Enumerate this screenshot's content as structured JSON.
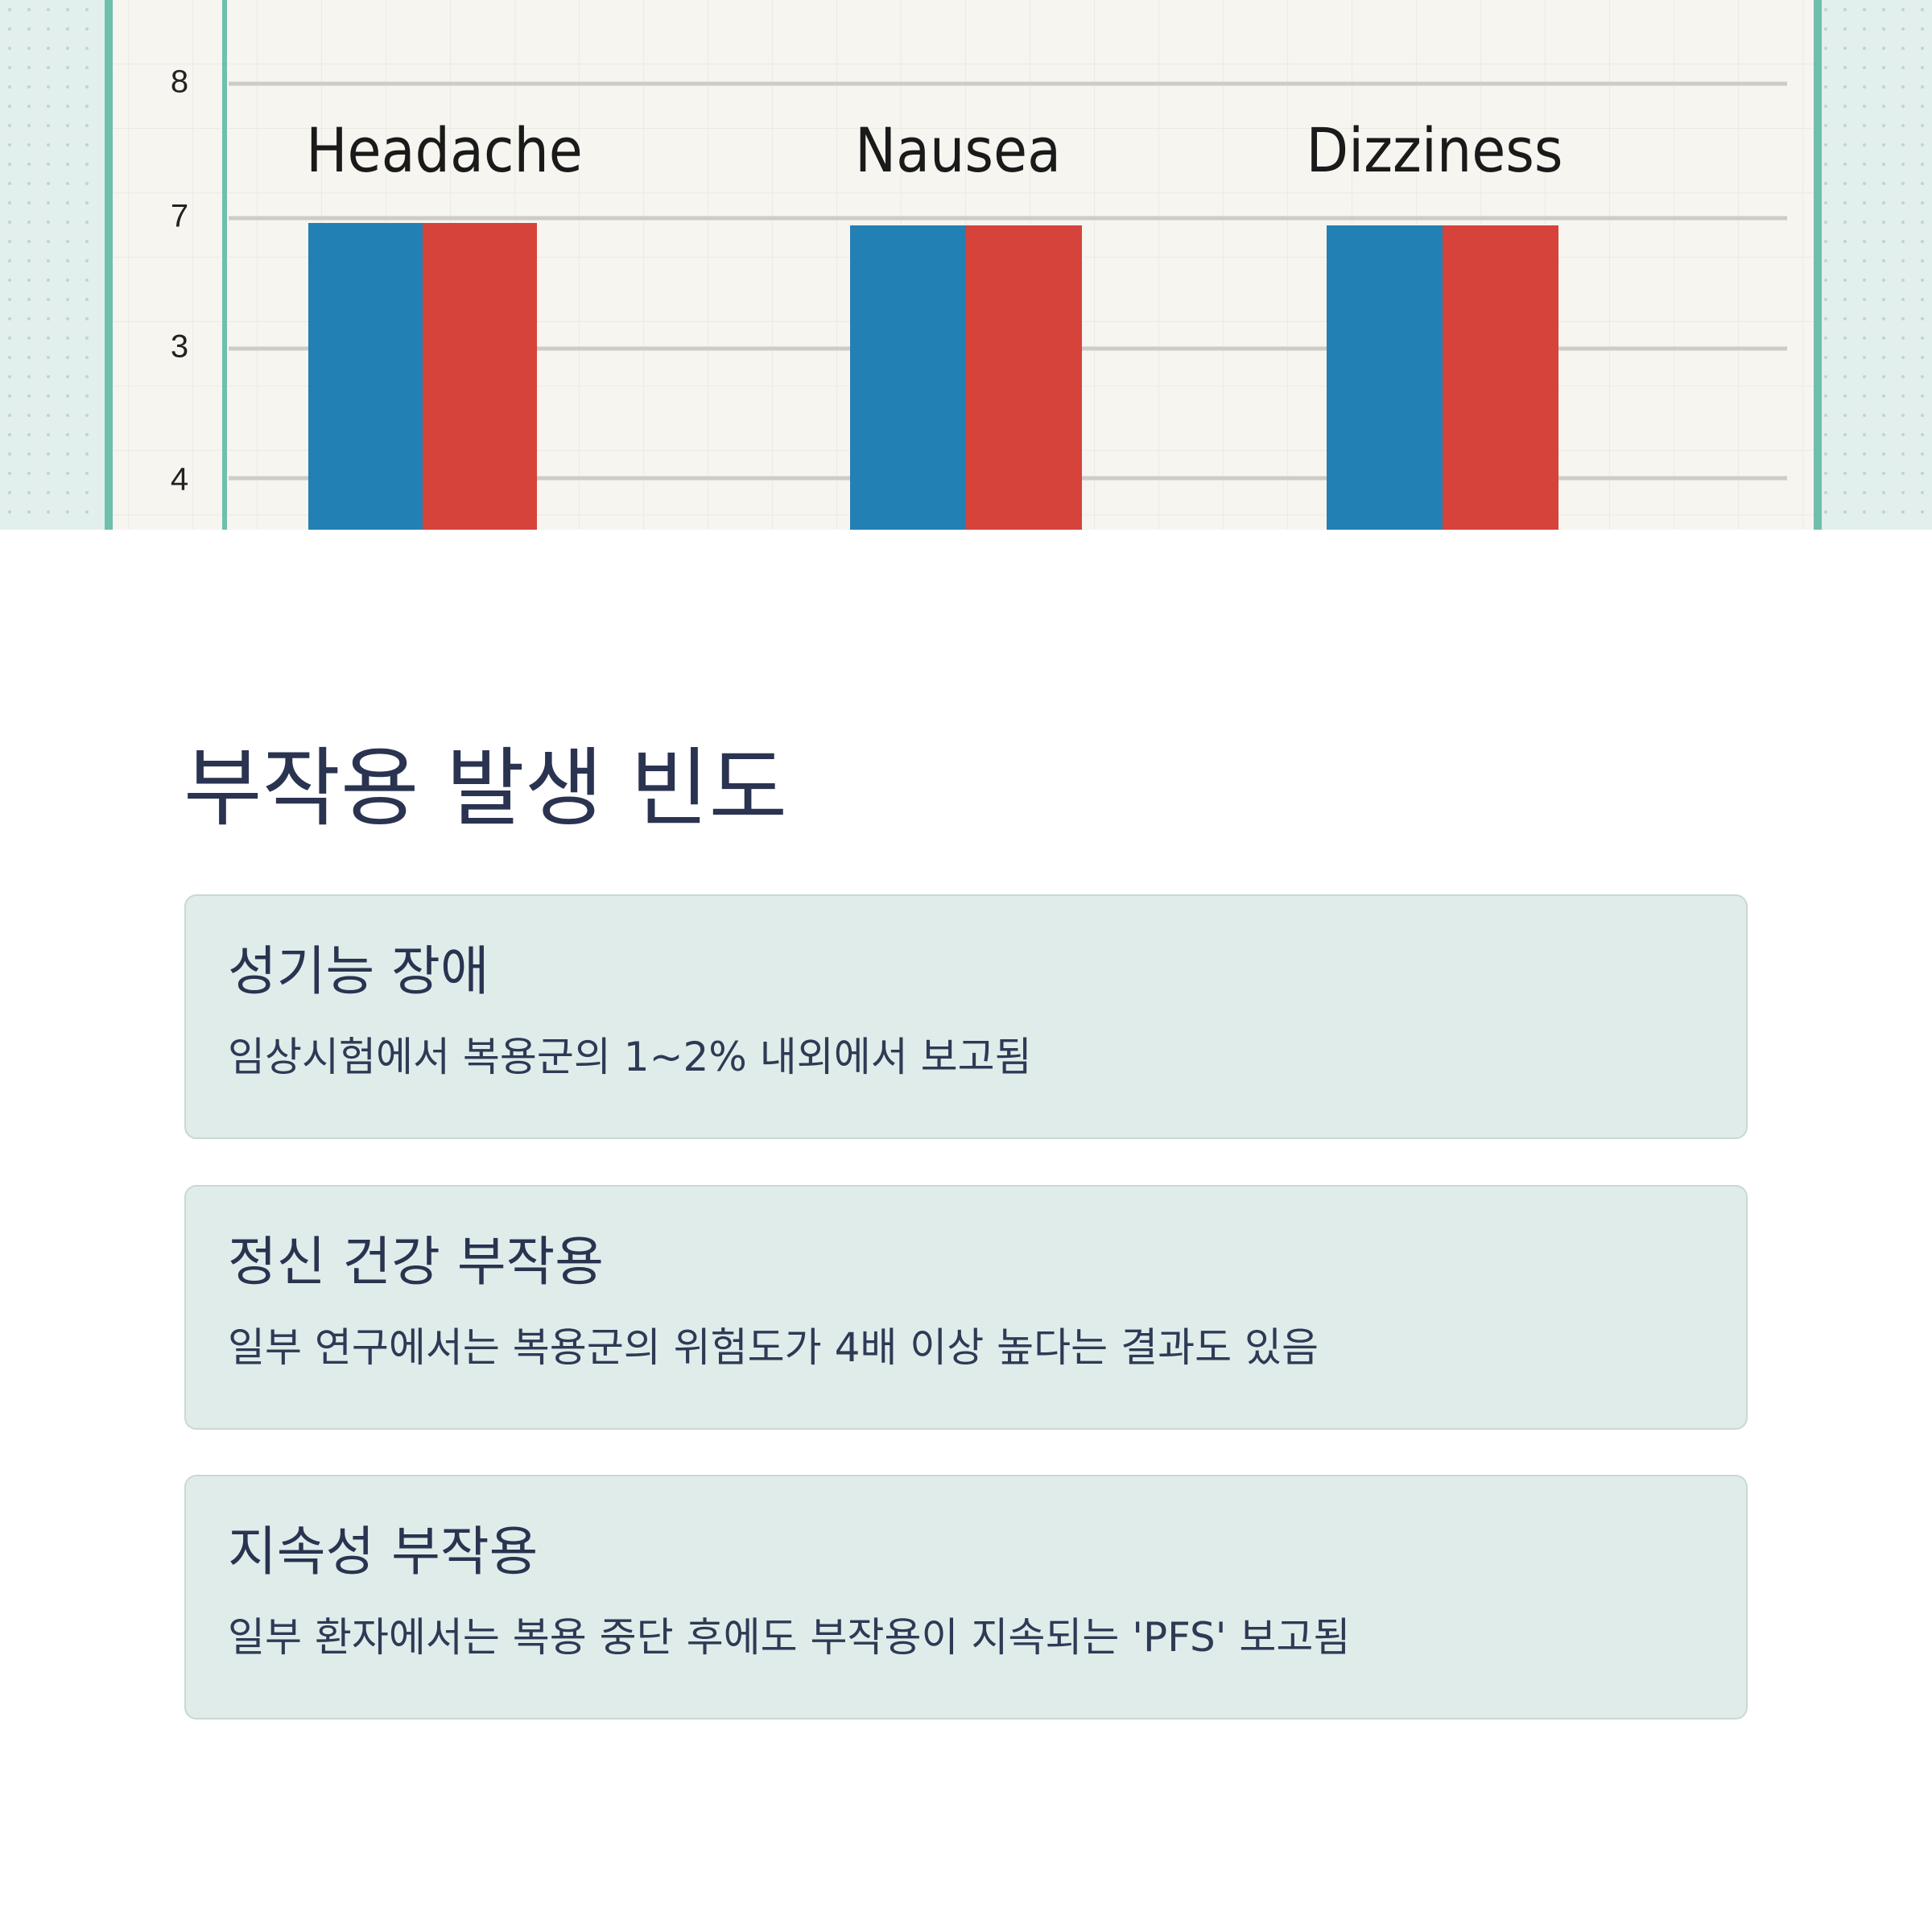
{
  "hero_image": {
    "y_labels": [
      "8",
      "7",
      "3",
      "4"
    ],
    "labels": [
      "Headache",
      "Nausea",
      "Dizziness"
    ]
  },
  "section": {
    "title": "부작용 발생 빈도",
    "cards": [
      {
        "title": "성기능 장애",
        "text": "임상시험에서 복용군의 1~2% 내외에서 보고됨"
      },
      {
        "title": "정신 건강 부작용",
        "text": "일부 연구에서는 복용군의 위험도가 4배 이상 높다는 결과도 있음"
      },
      {
        "title": "지속성 부작용",
        "text": "일부 환자에서는 복용 중단 후에도 부작용이 지속되는 'PFS' 보고됨"
      }
    ]
  }
}
